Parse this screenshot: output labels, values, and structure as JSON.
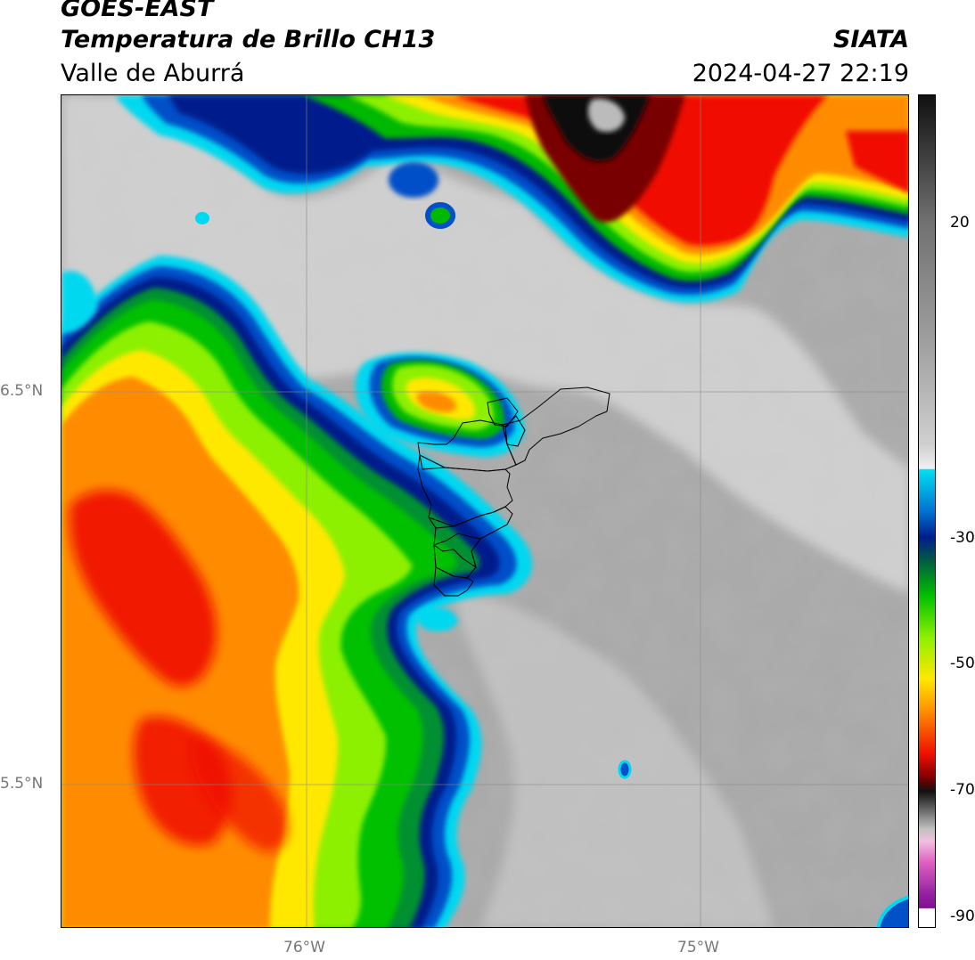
{
  "header": {
    "satellite": "GOES-EAST",
    "product": "Temperatura de Brillo CH13",
    "region": "Valle de Aburrá",
    "organization": "SIATA",
    "datetime": "2024-04-27 22:19"
  },
  "axes": {
    "lat_labels": [
      "6.5°N",
      "5.5°N"
    ],
    "lon_labels": [
      "76°W",
      "75°W"
    ]
  },
  "colorbar": {
    "ticks": [
      "20",
      "-30",
      "-50",
      "-70",
      "-90"
    ],
    "colors": {
      "warm_gray": "#8c8c8c",
      "light_gray": "#e8e8e8",
      "cyan": "#00d8f0",
      "blue": "#0050c8",
      "dark_blue": "#001c8c",
      "green": "#00c000",
      "lime": "#8cf000",
      "yellow": "#ffe800",
      "orange": "#ff8c00",
      "red": "#f01000",
      "dark_red": "#780000",
      "black": "#101010",
      "magenta": "#c050c0"
    }
  }
}
